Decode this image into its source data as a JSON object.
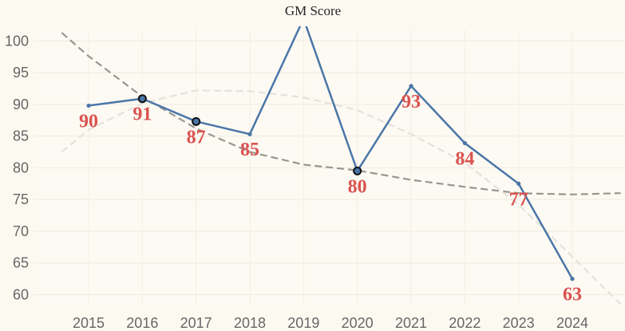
{
  "chart_data": {
    "type": "line",
    "title": "GM Score",
    "xlabel": "",
    "ylabel": "",
    "categories": [
      "2015",
      "2016",
      "2017",
      "2018",
      "2019",
      "2020",
      "2021",
      "2022",
      "2023",
      "2024"
    ],
    "series": [
      {
        "values": [
          89.8,
          90.9,
          87.3,
          85.3,
          103.5,
          79.5,
          92.9,
          83.9,
          77.5,
          62.5
        ],
        "data_labels": [
          "90",
          "91",
          "87",
          "85",
          "",
          "80",
          "93",
          "84",
          "77",
          "63"
        ],
        "highlighted": [
          false,
          true,
          true,
          false,
          false,
          true,
          false,
          false,
          false,
          false
        ],
        "color": "#4a76a8"
      }
    ],
    "trend_lines": [
      {
        "style": "dashed",
        "color": "#999690",
        "x": [
          2014.5,
          2015,
          2016,
          2017,
          2018,
          2019,
          2020,
          2021,
          2022,
          2023,
          2024,
          2024.9
        ],
        "y": [
          101.3,
          97.6,
          91.2,
          86.2,
          82.5,
          80.5,
          79.6,
          78.1,
          77.0,
          76.0,
          75.8,
          76.0
        ]
      },
      {
        "style": "dashed",
        "color": "#e5e2dc",
        "x": [
          2014.5,
          2015,
          2016,
          2017,
          2018,
          2019,
          2020,
          2021,
          2022,
          2023,
          2024,
          2024.9
        ],
        "y": [
          82.5,
          86.0,
          90.2,
          92.2,
          92.1,
          91.1,
          89.1,
          85.3,
          80.8,
          74.2,
          66.0,
          58.5
        ]
      }
    ],
    "y_ticks": [
      60,
      65,
      70,
      75,
      80,
      85,
      90,
      95,
      100
    ],
    "ylim": [
      58.3,
      101.8
    ],
    "grid": true,
    "colors": {
      "line": "#4a76a8",
      "label": "#d9534f",
      "background": "#fcf9f1"
    }
  }
}
